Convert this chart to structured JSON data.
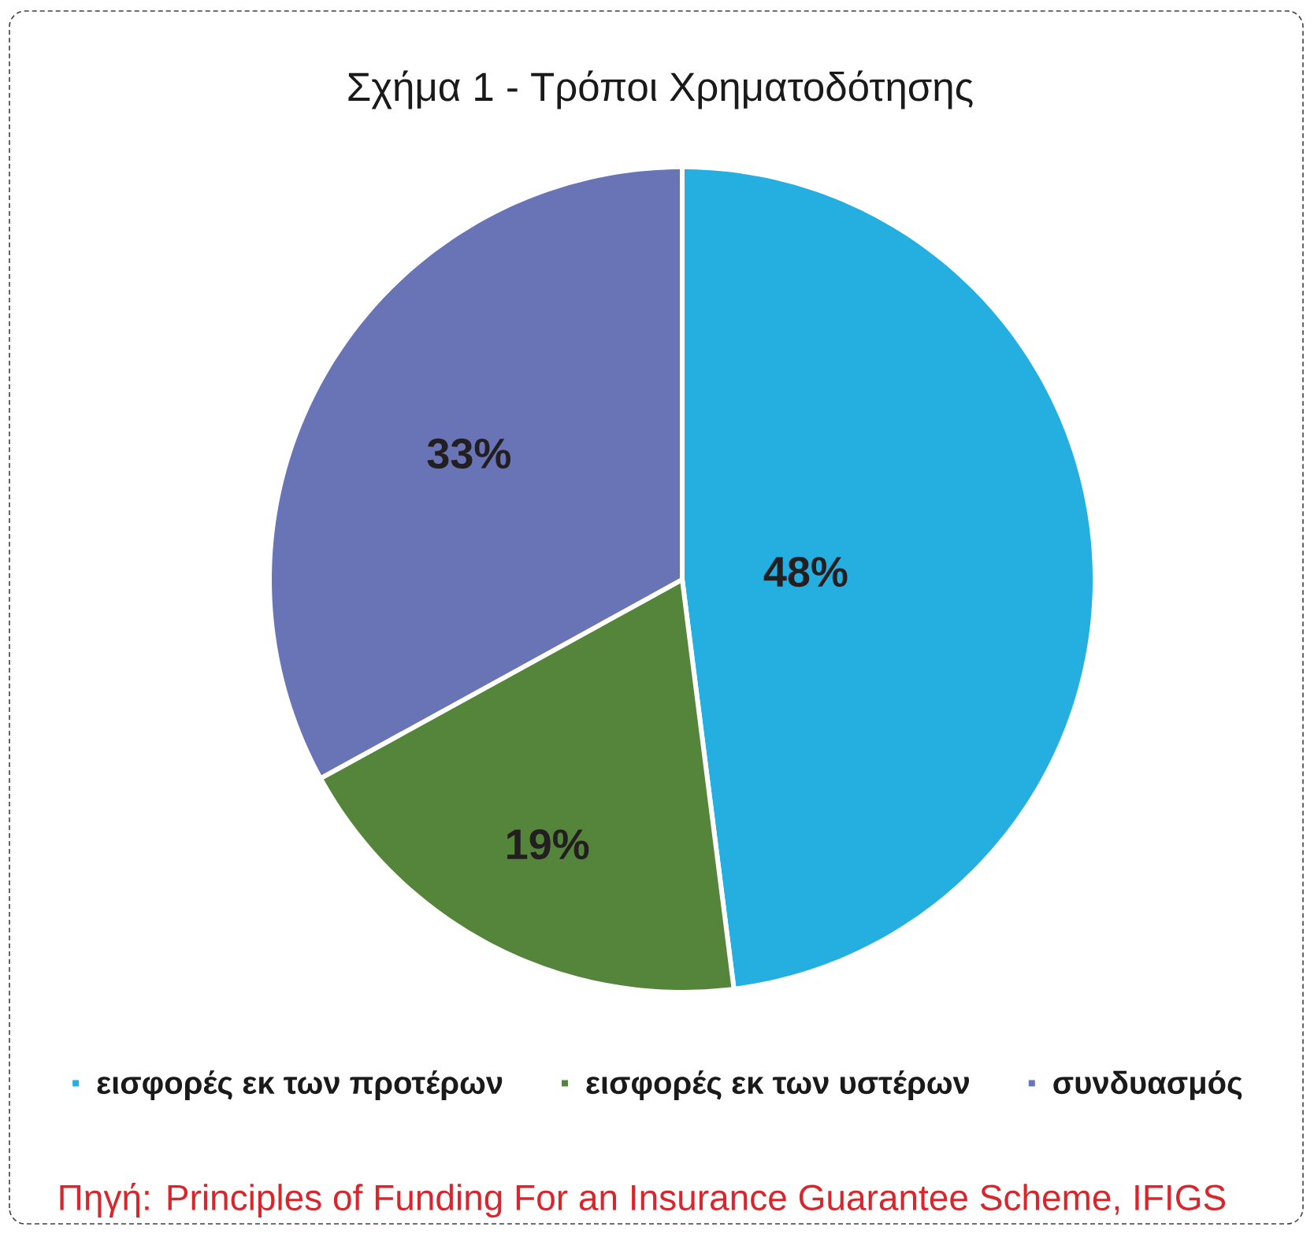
{
  "chart_data": {
    "type": "pie",
    "title": "Σχήμα 1 - Τρόποι Χρηματοδότησης",
    "categories": [
      "εισφορές εκ των προτέρων",
      "εισφορές εκ των υστέρων",
      "συνδυασμός"
    ],
    "values": [
      48,
      19,
      33
    ],
    "colors": [
      "#25AFE0",
      "#54853A",
      "#6874B5"
    ],
    "value_labels": [
      "48%",
      "19%",
      "33%"
    ],
    "legend": "bottom",
    "annotations": [
      "Πηγή: Principles of Funding For an Insurance Guarantee Scheme, IFIGS"
    ]
  }
}
